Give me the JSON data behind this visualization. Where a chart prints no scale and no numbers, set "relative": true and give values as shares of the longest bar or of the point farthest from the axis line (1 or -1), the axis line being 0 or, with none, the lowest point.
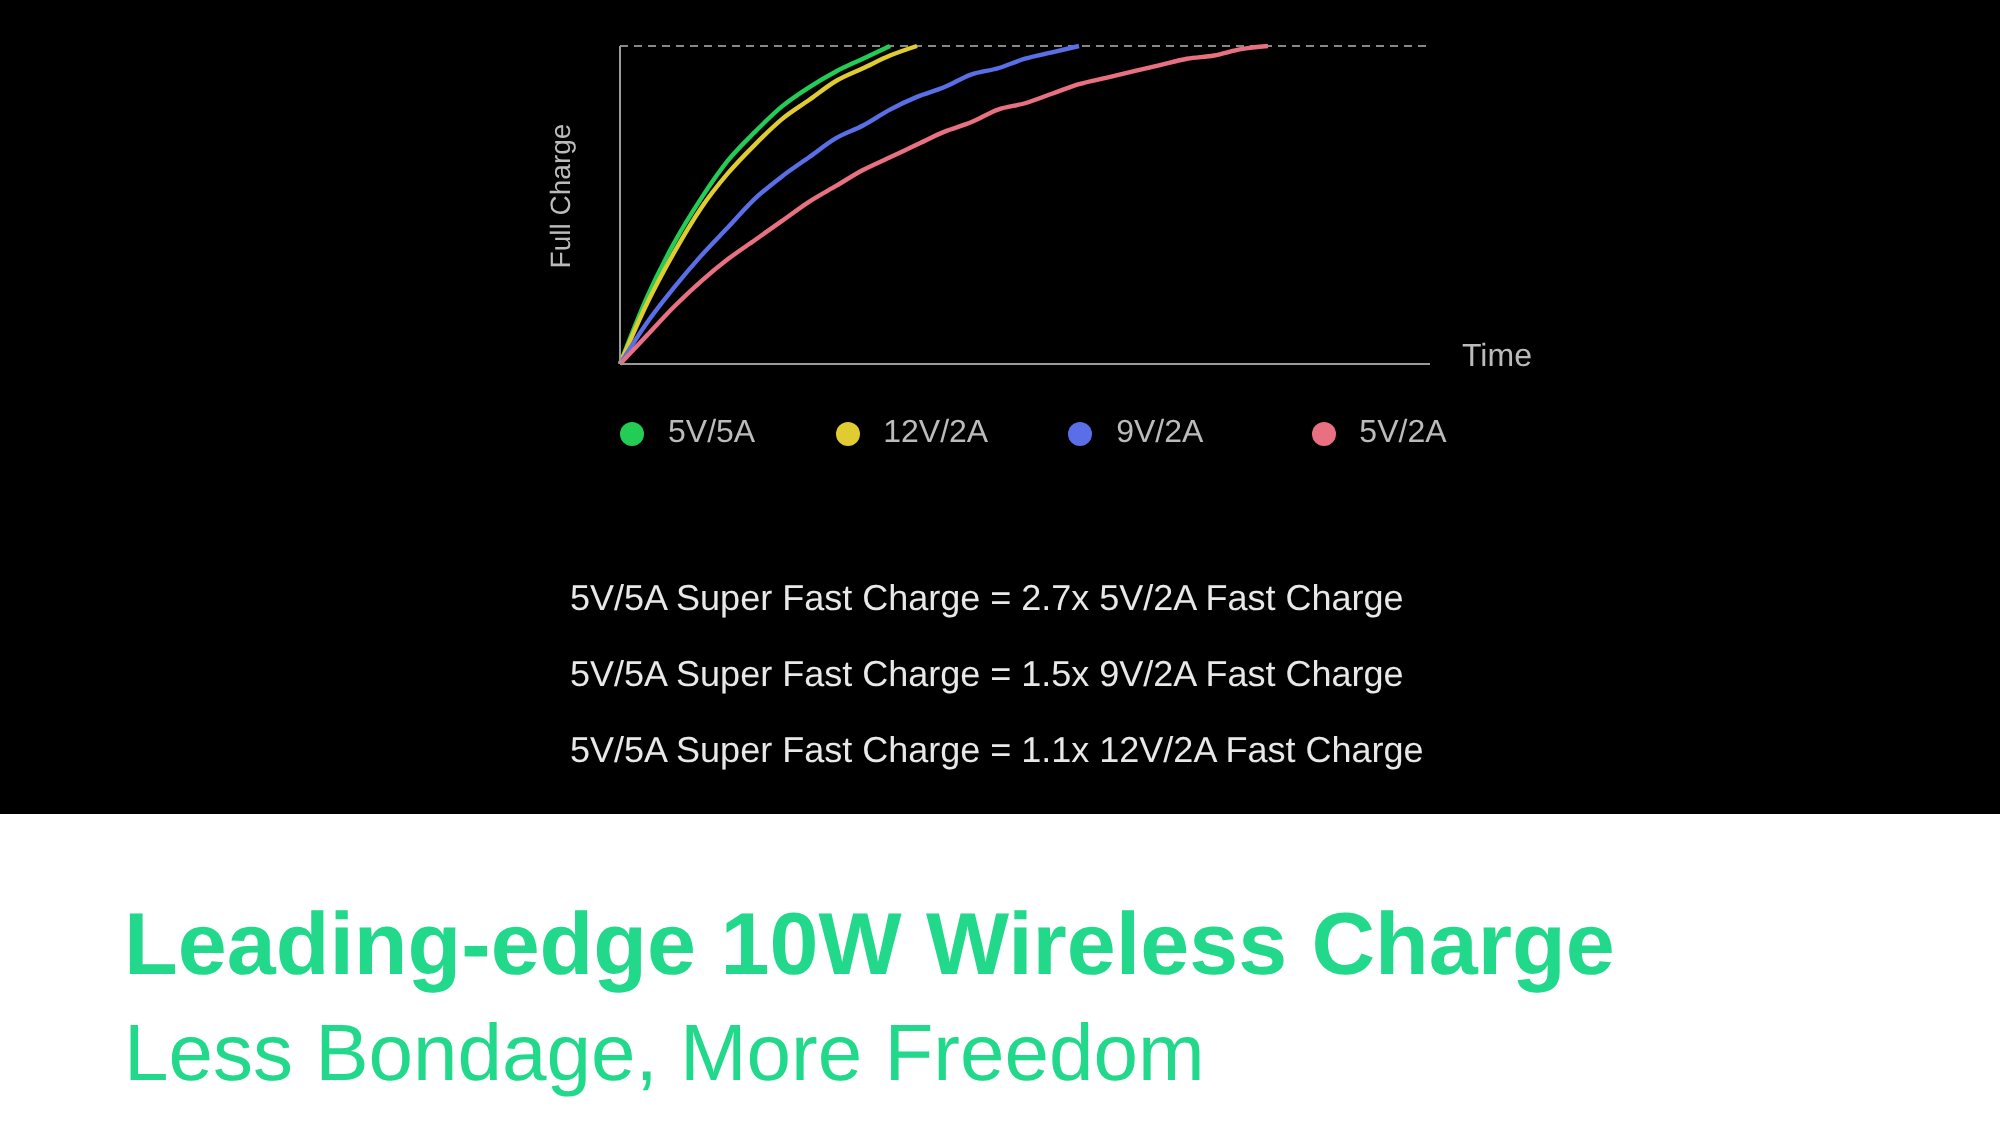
{
  "chart_data": {
    "type": "line",
    "title": "Leading-edge 10W Wireless Charge",
    "subtitle": "Less Bondage, More Freedom",
    "xlabel": "Time",
    "ylabel": "Full Charge",
    "relative": true,
    "categories": [
      null,
      null,
      null,
      null,
      null,
      null,
      null,
      null,
      null,
      null,
      null,
      null,
      null,
      null,
      null,
      null,
      null,
      null,
      null,
      null,
      null,
      null,
      null,
      null,
      null,
      null,
      null,
      null,
      null,
      null,
      null
    ],
    "series": [
      {
        "name": "5V/5A",
        "color": "#22cc55",
        "values": [
          0,
          0.21,
          0.38,
          0.52,
          0.64,
          0.73,
          0.81,
          0.87,
          0.92,
          0.96,
          1,
          null,
          null,
          null,
          null,
          null,
          null,
          null,
          null,
          null,
          null,
          null,
          null,
          null,
          null,
          null,
          null,
          null,
          null,
          null,
          null
        ]
      },
      {
        "name": "12V/2A",
        "color": "#e0cc30",
        "values": [
          0,
          0.19,
          0.35,
          0.49,
          0.6,
          0.69,
          0.77,
          0.83,
          0.89,
          0.93,
          0.97,
          1,
          null,
          null,
          null,
          null,
          null,
          null,
          null,
          null,
          null,
          null,
          null,
          null,
          null,
          null,
          null,
          null,
          null,
          null,
          null
        ]
      },
      {
        "name": "9V/2A",
        "color": "#5a6ee8",
        "values": [
          0,
          0.13,
          0.24,
          0.34,
          0.43,
          0.52,
          0.59,
          0.65,
          0.71,
          0.75,
          0.8,
          0.84,
          0.87,
          0.91,
          0.93,
          0.96,
          0.98,
          1,
          null,
          null,
          null,
          null,
          null,
          null,
          null,
          null,
          null,
          null,
          null,
          null,
          null
        ]
      },
      {
        "name": "5V/2A",
        "color": "#e87080",
        "values": [
          0,
          0.09,
          0.18,
          0.26,
          0.33,
          0.39,
          0.45,
          0.51,
          0.56,
          0.61,
          0.65,
          0.69,
          0.73,
          0.76,
          0.8,
          0.82,
          0.85,
          0.88,
          0.9,
          0.92,
          0.94,
          0.96,
          0.97,
          0.99,
          1,
          null,
          null,
          null,
          null,
          null,
          null
        ]
      }
    ],
    "ref_lines": [
      {
        "axis": "y",
        "value": 1,
        "color": "#888888",
        "line_style": "dashed"
      }
    ],
    "legend": "bottom",
    "marker": "none",
    "line_style": "solid",
    "grid": false,
    "annotations": [
      "5V/5A Super Fast Charge = 2.7x 5V/2A Fast Charge",
      "5V/5A Super Fast Charge = 1.5x 9V/2A Fast Charge",
      "5V/5A Super Fast Charge = 1.1x 12V/2A Fast Charge"
    ]
  }
}
